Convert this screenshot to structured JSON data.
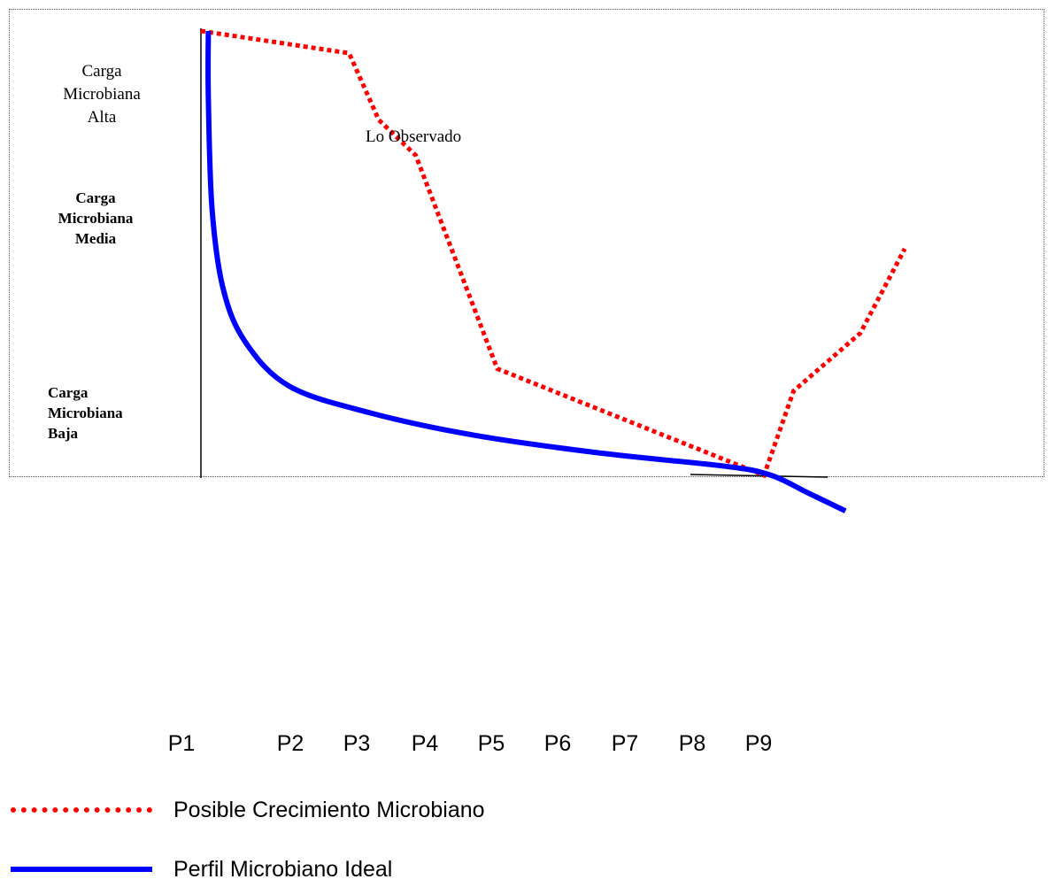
{
  "chart_data": {
    "type": "line",
    "y_axis_labels": {
      "high": "Carga Microbiana Alta",
      "mid": "Carga Microbiana Media",
      "low": "Carga Microbiana Baja"
    },
    "categories": [
      "P1",
      "P2",
      "P3",
      "P4",
      "P5",
      "P6",
      "P7",
      "P8",
      "P9"
    ],
    "annotation": "Lo Observado",
    "series": [
      {
        "name": "Posible Crecimiento Microbiano",
        "style": "dotted",
        "color": "#ff0000",
        "points": [
          [
            1.0,
            100
          ],
          [
            3.0,
            95
          ],
          [
            3.4,
            80
          ],
          [
            3.9,
            72
          ],
          [
            5.0,
            24
          ],
          [
            8.6,
            0
          ],
          [
            9.0,
            19
          ],
          [
            9.9,
            32
          ],
          [
            10.5,
            51
          ]
        ]
      },
      {
        "name": "Perfil Microbiano Ideal",
        "style": "solid",
        "color": "#0000ff",
        "points": [
          [
            1.1,
            100
          ],
          [
            1.1,
            85
          ],
          [
            1.15,
            60
          ],
          [
            1.3,
            42
          ],
          [
            1.6,
            30
          ],
          [
            2.2,
            20
          ],
          [
            3.3,
            14
          ],
          [
            4.7,
            9
          ],
          [
            6.4,
            5
          ],
          [
            8.1,
            2
          ],
          [
            8.7,
            0
          ],
          [
            9.2,
            -4
          ],
          [
            9.7,
            -8
          ]
        ]
      }
    ],
    "legend": [
      {
        "label": "Posible Crecimiento Microbiano",
        "style": "dotted",
        "color": "#ff0000"
      },
      {
        "label": "Perfil Microbiano Ideal",
        "style": "solid",
        "color": "#0000ff"
      }
    ],
    "colors": {
      "dotted_series": "#ff0000",
      "solid_series": "#0000ff",
      "axis": "#000000"
    }
  }
}
